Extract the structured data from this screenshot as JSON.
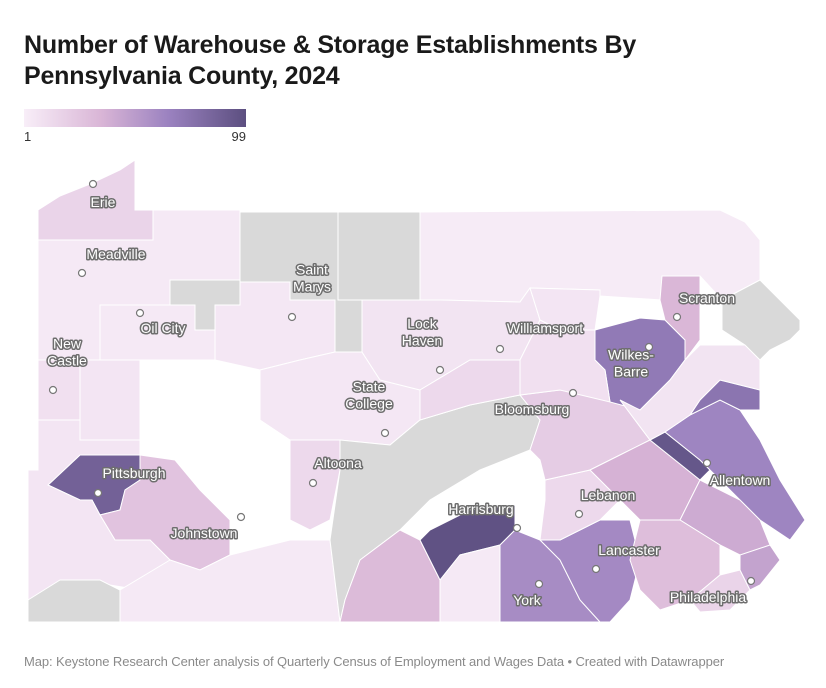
{
  "title": "Number of Warehouse & Storage Establishments By Pennsylvania County, 2024",
  "legend": {
    "min_label": "1",
    "max_label": "99",
    "min": 1,
    "max": 99,
    "colors": [
      "#f8eef8",
      "#d9b5d6",
      "#9b82c0",
      "#5c4f80"
    ],
    "no_data_color": "#d9d9d9"
  },
  "footer": "Map: Keystone Research Center analysis of Quarterly Census of Employment and Wages Data • Created with Datawrapper",
  "cities": [
    {
      "name": "Erie",
      "lines": [
        "Erie"
      ]
    },
    {
      "name": "Meadville",
      "lines": [
        "Meadville"
      ]
    },
    {
      "name": "Oil City",
      "lines": [
        "Oil City"
      ]
    },
    {
      "name": "New Castle",
      "lines": [
        "New",
        "Castle"
      ]
    },
    {
      "name": "Saint Marys",
      "lines": [
        "Saint",
        "Marys"
      ]
    },
    {
      "name": "Lock Haven",
      "lines": [
        "Lock",
        "Haven"
      ]
    },
    {
      "name": "Williamsport",
      "lines": [
        "Williamsport"
      ]
    },
    {
      "name": "Scranton",
      "lines": [
        "Scranton"
      ]
    },
    {
      "name": "Wilkes-Barre",
      "lines": [
        "Wilkes-",
        "Barre"
      ]
    },
    {
      "name": "State College",
      "lines": [
        "State",
        "College"
      ]
    },
    {
      "name": "Bloomsburg",
      "lines": [
        "Bloomsburg"
      ]
    },
    {
      "name": "Altoona",
      "lines": [
        "Altoona"
      ]
    },
    {
      "name": "Pittsburgh",
      "lines": [
        "Pittsburgh"
      ]
    },
    {
      "name": "Johnstown",
      "lines": [
        "Johnstown"
      ]
    },
    {
      "name": "Harrisburg",
      "lines": [
        "Harrisburg"
      ]
    },
    {
      "name": "Lebanon",
      "lines": [
        "Lebanon"
      ]
    },
    {
      "name": "Allentown",
      "lines": [
        "Allentown"
      ]
    },
    {
      "name": "Lancaster",
      "lines": [
        "Lancaster"
      ]
    },
    {
      "name": "York",
      "lines": [
        "York"
      ]
    },
    {
      "name": "Philadelphia",
      "lines": [
        "Philadelphia"
      ]
    }
  ],
  "regions": [
    {
      "name": "Erie area",
      "level": 0.15
    },
    {
      "name": "Crawford area",
      "level": 0.03
    },
    {
      "name": "Northwest gray",
      "level": null
    },
    {
      "name": "North central gray",
      "level": null
    },
    {
      "name": "Northern tier",
      "level": 0.02
    },
    {
      "name": "Mercer/Lawrence",
      "level": 0.08
    },
    {
      "name": "Butler area",
      "level": 0.05
    },
    {
      "name": "Venango area",
      "level": 0.03
    },
    {
      "name": "Clarion/Jefferson",
      "level": 0.04
    },
    {
      "name": "Allegheny (Pittsburgh)",
      "level": 0.88
    },
    {
      "name": "Westmoreland",
      "level": 0.25
    },
    {
      "name": "Washington/Fayette",
      "level": 0.05
    },
    {
      "name": "Greene",
      "level": null
    },
    {
      "name": "Somerset/Bedford",
      "level": 0.03
    },
    {
      "name": "Blair (Altoona)",
      "level": 0.12
    },
    {
      "name": "Centre",
      "level": 0.04
    },
    {
      "name": "Clinton/Lycoming",
      "level": 0.06
    },
    {
      "name": "Central gray ridge",
      "level": null
    },
    {
      "name": "Franklin",
      "level": 0.3
    },
    {
      "name": "Dauphin/Cumberland",
      "level": 0.98
    },
    {
      "name": "Adams",
      "level": 0.03
    },
    {
      "name": "York",
      "level": 0.6
    },
    {
      "name": "Lancaster",
      "level": 0.62
    },
    {
      "name": "Lebanon",
      "level": 0.12
    },
    {
      "name": "Schuylkill",
      "level": 0.2
    },
    {
      "name": "Berks",
      "level": 0.35
    },
    {
      "name": "Lehigh",
      "level": 0.95
    },
    {
      "name": "Northampton/Bucks",
      "level": 0.65
    },
    {
      "name": "Montgomery",
      "level": 0.4
    },
    {
      "name": "Chester",
      "level": 0.28
    },
    {
      "name": "Delaware",
      "level": 0.15
    },
    {
      "name": "Philadelphia",
      "level": 0.45
    },
    {
      "name": "Luzerne (Wilkes-Barre)",
      "level": 0.72
    },
    {
      "name": "Lackawanna (Scranton)",
      "level": 0.32
    },
    {
      "name": "Monroe",
      "level": 0.75
    },
    {
      "name": "Carbon/Wayne area",
      "level": 0.06
    },
    {
      "name": "Pike",
      "level": null
    },
    {
      "name": "Columbia/Montour",
      "level": 0.08
    },
    {
      "name": "Snyder/Union",
      "level": 0.12
    },
    {
      "name": "Northumberland",
      "level": 0.05
    }
  ]
}
